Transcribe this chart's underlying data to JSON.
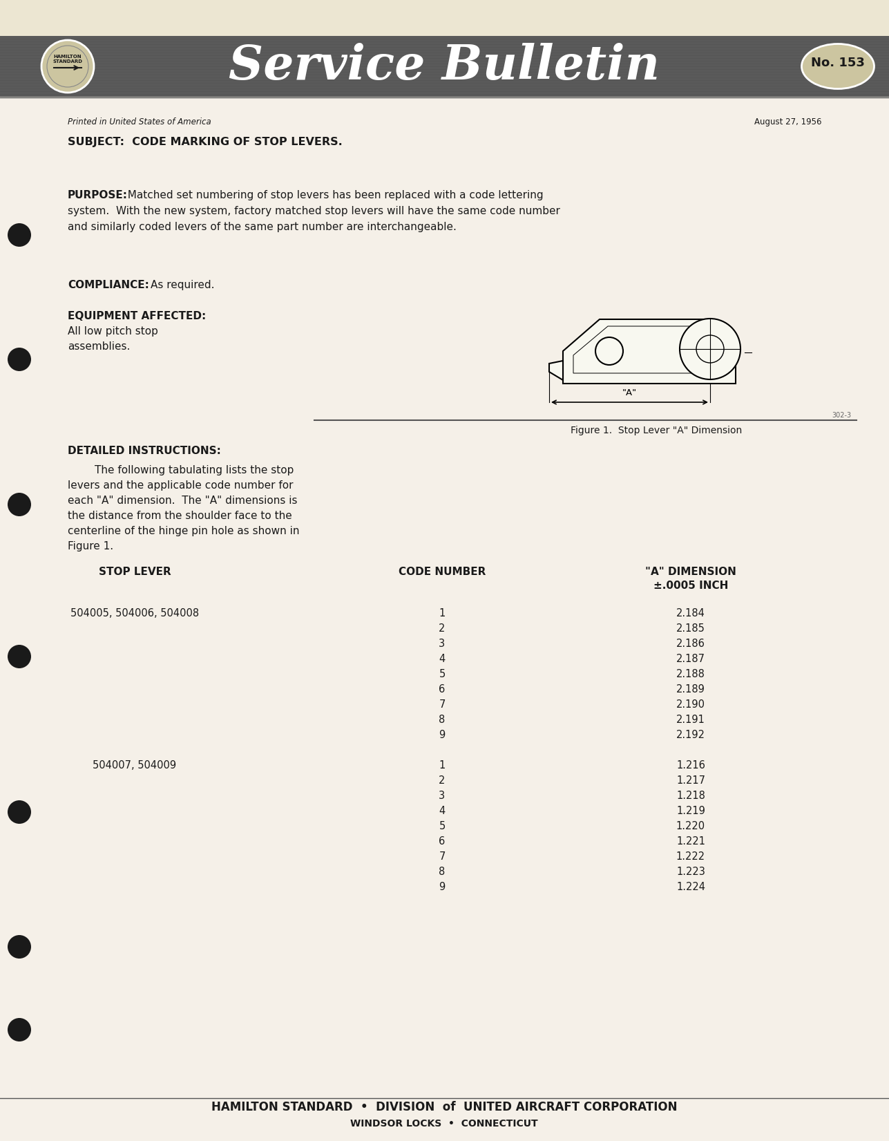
{
  "bg_color": "#f5f0e8",
  "header_bg": "#5a5a5a",
  "bulletin_no": "No. 153",
  "printed_line": "Printed in United States of America",
  "date_line": "August 27, 1956",
  "subject": "SUBJECT:  CODE MARKING OF STOP LEVERS.",
  "purpose_bold": "PURPOSE:",
  "purpose_text": "  Matched set numbering of stop levers has been replaced with a code lettering\nsystem.  With the new system, factory matched stop levers will have the same code number\nand similarly coded levers of the same part number are interchangeable.",
  "compliance_bold": "COMPLIANCE:",
  "compliance_text": "As required.",
  "equipment_bold": "EQUIPMENT AFFECTED:",
  "equipment_text1": "All low pitch stop",
  "equipment_text2": "assemblies.",
  "detailed_bold": "DETAILED INSTRUCTIONS:",
  "detailed_lines": [
    "        The following tabulating lists the stop",
    "levers and the applicable code number for",
    "each \"A\" dimension.  The \"A\" dimensions is",
    "the distance from the shoulder face to the",
    "centerline of the hinge pin hole as shown in",
    "Figure 1."
  ],
  "figure_caption": "Figure 1.  Stop Lever \"A\" Dimension",
  "figure_ref": "302-3",
  "col1_header": "STOP LEVER",
  "col2_header": "CODE NUMBER",
  "col3_header_line1": "\"A\" DIMENSION",
  "col3_header_line2": "±.0005 INCH",
  "group1_lever": "504005, 504006, 504008",
  "group1_codes": [
    "1",
    "2",
    "3",
    "4",
    "5",
    "6",
    "7",
    "8",
    "9"
  ],
  "group1_dims": [
    "2.184",
    "2.185",
    "2.186",
    "2.187",
    "2.188",
    "2.189",
    "2.190",
    "2.191",
    "2.192"
  ],
  "group2_lever": "504007, 504009",
  "group2_codes": [
    "1",
    "2",
    "3",
    "4",
    "5",
    "6",
    "7",
    "8",
    "9"
  ],
  "group2_dims": [
    "1.216",
    "1.217",
    "1.218",
    "1.219",
    "1.220",
    "1.221",
    "1.222",
    "1.223",
    "1.224"
  ],
  "footer_line1": "HAMILTON STANDARD  •  DIVISION  of  UNITED AIRCRAFT CORPORATION",
  "footer_line2": "WINDSOR LOCKS  •  CONNECTICUT",
  "text_color": "#1a1a1a",
  "hole_positions": [
    340,
    520,
    730,
    950,
    1175,
    1370,
    1490
  ]
}
